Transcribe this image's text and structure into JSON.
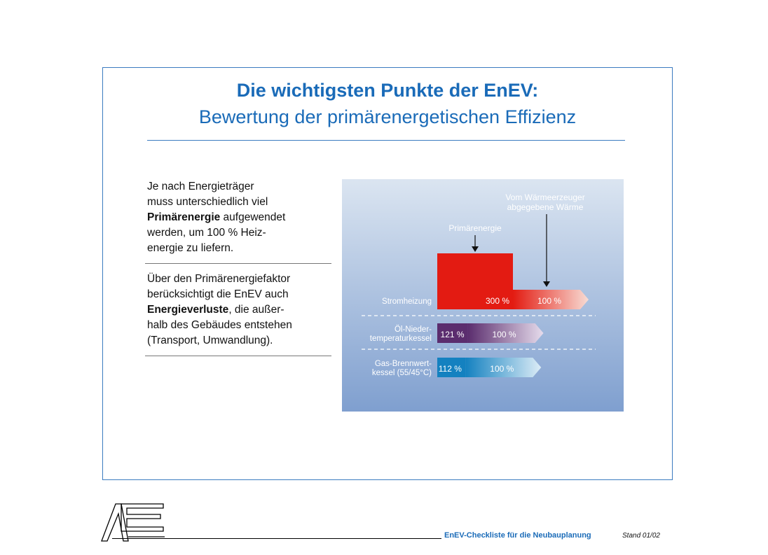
{
  "header": {
    "title": "Die wichtigsten Punkte der EnEV:",
    "subtitle": "Bewertung der primärenergetischen Effizienz"
  },
  "text_block_1": {
    "line1": "Je nach Energieträger",
    "line2": "muss unterschiedlich viel",
    "line3_bold": "Primärenergie",
    "line3_rest": " aufgewendet",
    "line4": "werden, um 100 % Heiz-",
    "line5": "energie zu liefern."
  },
  "text_block_2": {
    "line1": "Über den Primärenergiefaktor",
    "line2": "berücksichtigt die EnEV auch",
    "line3_bold": "Energieverluste",
    "line3_rest": ", die außer-",
    "line4": "halb des Gebäudes entstehen",
    "line5": "(Transport, Umwandlung)."
  },
  "chart_data": {
    "type": "bar",
    "annotations": {
      "primary": "Primärenergie",
      "heat_line1": "Vom Wärmeerzeuger",
      "heat_line2": "abgegebene Wärme"
    },
    "categories": [
      {
        "label_line1": "Stromheizung",
        "label_line2": ""
      },
      {
        "label_line1": "Öl-Nieder-",
        "label_line2": "temperaturkessel"
      },
      {
        "label_line1": "Gas-Brennwert-",
        "label_line2": "kessel (55/45°C)"
      }
    ],
    "series": [
      {
        "values": [
          300,
          121,
          112
        ],
        "labels": [
          "300 %",
          "121 %",
          "112 %"
        ]
      },
      {
        "values": [
          100,
          100,
          100
        ],
        "labels": [
          "100 %",
          "100 %",
          "100 %"
        ]
      }
    ],
    "colors": [
      "#e31b12",
      "#5b2d6e",
      "#1481c0"
    ]
  },
  "footer": {
    "title": "EnEV-Checkliste für die Neubauplanung",
    "stand": "Stand 01/02"
  }
}
